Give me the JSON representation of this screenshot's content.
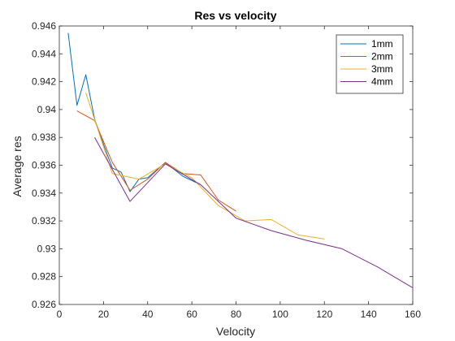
{
  "chart_data": {
    "type": "line",
    "title": "Res vs velocity",
    "xlabel": "Velocity",
    "ylabel": "Average res",
    "xlim": [
      0,
      160
    ],
    "ylim": [
      0.926,
      0.946
    ],
    "xticks": [
      "0",
      "20",
      "40",
      "60",
      "80",
      "100",
      "120",
      "140",
      "160"
    ],
    "yticks": [
      "0.926",
      "0.928",
      "0.93",
      "0.932",
      "0.934",
      "0.936",
      "0.938",
      "0.94",
      "0.942",
      "0.944",
      "0.946"
    ],
    "xtick_values": [
      0,
      20,
      40,
      60,
      80,
      100,
      120,
      140,
      160
    ],
    "ytick_values": [
      0.926,
      0.928,
      0.93,
      0.932,
      0.934,
      0.936,
      0.938,
      0.94,
      0.942,
      0.944,
      0.946
    ],
    "grid": false,
    "legend_position": "top-right",
    "series": [
      {
        "name": "1mm",
        "color": "#0072BD",
        "x": [
          4,
          8,
          12,
          16,
          20,
          24,
          28,
          32,
          36,
          40,
          48,
          56,
          64
        ],
        "y": [
          0.9455,
          0.9403,
          0.9425,
          0.9393,
          0.9375,
          0.9358,
          0.9355,
          0.9341,
          0.935,
          0.9351,
          0.9362,
          0.9352,
          0.9346
        ]
      },
      {
        "name": "2mm",
        "color": "#D95319",
        "x": [
          8,
          16,
          24,
          32,
          40,
          48,
          56,
          64,
          72,
          80
        ],
        "y": [
          0.9399,
          0.9392,
          0.9362,
          0.9342,
          0.935,
          0.9362,
          0.9354,
          0.9353,
          0.9335,
          0.9327
        ]
      },
      {
        "name": "3mm",
        "color": "#EDB120",
        "x": [
          12,
          24,
          36,
          48,
          60,
          72,
          84,
          96,
          108,
          120
        ],
        "y": [
          0.9412,
          0.9354,
          0.935,
          0.9361,
          0.9351,
          0.9331,
          0.932,
          0.9321,
          0.931,
          0.9307
        ]
      },
      {
        "name": "4mm",
        "color": "#7E2F8E",
        "x": [
          16,
          32,
          48,
          64,
          80,
          96,
          112,
          128,
          144,
          160
        ],
        "y": [
          0.938,
          0.9334,
          0.9361,
          0.9346,
          0.9322,
          0.9313,
          0.9306,
          0.93,
          0.9287,
          0.9272
        ]
      }
    ]
  }
}
